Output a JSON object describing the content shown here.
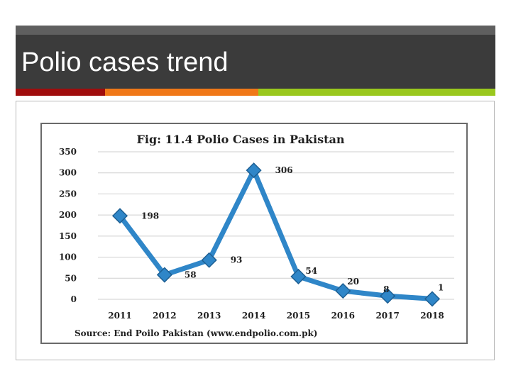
{
  "slide": {
    "title": "Polio cases trend"
  },
  "colors": {
    "title_bar": "#3b3b3b",
    "top_strip": "#5f5f5f",
    "accent_1": "#a00d0d",
    "accent_2": "#f07818",
    "accent_3": "#9ac81e",
    "series": "#2f86c8"
  },
  "chart_data": {
    "type": "line",
    "title": "Fig: 11.4 Polio Cases in Pakistan",
    "categories": [
      "2011",
      "2012",
      "2013",
      "2014",
      "2015",
      "2016",
      "2017",
      "2018"
    ],
    "values": [
      198,
      58,
      93,
      306,
      54,
      20,
      8,
      1
    ],
    "data_labels": [
      "198",
      "58",
      "93",
      "306",
      "54",
      "20",
      "8",
      "1"
    ],
    "y_ticks": [
      "0",
      "50",
      "100",
      "150",
      "200",
      "250",
      "300",
      "350"
    ],
    "ylim": [
      0,
      350
    ],
    "grid": true,
    "marker": "diamond",
    "source": "Source: End Poilo Pakistan (www.endpolio.com.pk)"
  }
}
